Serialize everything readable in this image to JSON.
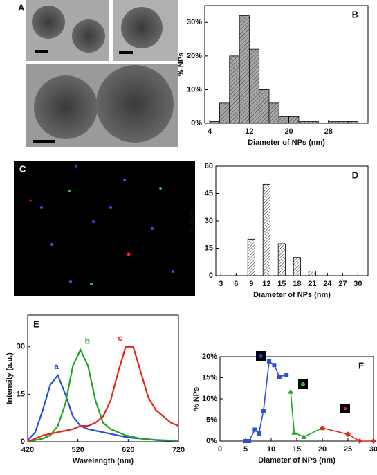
{
  "images": [
    {
      "panel": "A"
    },
    {
      "panel": "C"
    }
  ],
  "chart_data": [
    {
      "type": "histogram",
      "panel": "B",
      "xlabel": "Diameter of NPs (nm)",
      "ylabel": "% NPs",
      "bins": [
        4,
        6,
        8,
        10,
        12,
        14,
        16,
        18,
        20,
        22,
        24,
        26,
        28,
        30,
        32,
        34
      ],
      "values": [
        0.5,
        6,
        20,
        32,
        22,
        10,
        6,
        2,
        2,
        0.5,
        0.5,
        0,
        0.5,
        0.5,
        0.5
      ],
      "color": "#a8a8a8",
      "xlim": [
        3,
        36
      ],
      "xticks": [
        4,
        12,
        20,
        28
      ],
      "ylim": [
        0,
        35
      ],
      "yticks": [
        {
          "value": 0,
          "label": "0%"
        },
        {
          "value": 10,
          "label": "10%"
        },
        {
          "value": 20,
          "label": "20%"
        },
        {
          "value": 30,
          "label": "30%"
        }
      ]
    },
    {
      "type": "bar",
      "panel": "D",
      "xlabel": "Diameter of NPs (nm)",
      "ylabel": "% NPs",
      "x": [
        9,
        12,
        15,
        18,
        21
      ],
      "values": [
        20,
        50,
        17.5,
        10,
        2.5
      ],
      "color": "#ffffff",
      "xlim": [
        2,
        32
      ],
      "xticks": [
        3,
        6,
        9,
        12,
        15,
        18,
        21,
        24,
        27,
        30
      ],
      "ylim": [
        0,
        60
      ],
      "yticks": [
        0,
        15,
        30,
        45,
        60
      ]
    },
    {
      "type": "line",
      "panel": "E",
      "xlabel": "Wavelength (nm)",
      "ylabel": "Intensity (a.u.)",
      "x": [
        420,
        435,
        450,
        465,
        480,
        495,
        510,
        525,
        540,
        555,
        570,
        585,
        600,
        615,
        630,
        645,
        660,
        675,
        690,
        705,
        720
      ],
      "series": [
        {
          "name": "a",
          "color": "#2b4fd8",
          "values": [
            0.5,
            3,
            10,
            18,
            21,
            15,
            8,
            5,
            4,
            3.5,
            3,
            2.5,
            2,
            1.5,
            1.2,
            1,
            0.8,
            0.5,
            0.4,
            0.3,
            0.2
          ]
        },
        {
          "name": "b",
          "color": "#1ea51e",
          "values": [
            0,
            0.5,
            1,
            2,
            5,
            12,
            24,
            29,
            24,
            13,
            6,
            4,
            3,
            2,
            1.5,
            1,
            0.8,
            0.6,
            0.5,
            0.4,
            0.3
          ]
        },
        {
          "name": "c",
          "color": "#e8231c",
          "values": [
            0,
            1,
            2,
            2.5,
            3,
            3.5,
            4,
            5,
            5,
            6,
            8,
            13,
            22,
            30,
            30,
            22,
            14,
            10,
            8,
            6,
            5
          ]
        }
      ],
      "xlim": [
        420,
        720
      ],
      "xticks": [
        420,
        520,
        620,
        720
      ],
      "ylim": [
        0,
        40
      ],
      "yticks": [
        0,
        15,
        30
      ]
    },
    {
      "type": "scatter-line",
      "panel": "F",
      "xlabel": "Diameter of NPs (nm)",
      "ylabel": "% NPs",
      "series": [
        {
          "color": "#2b4fd8",
          "marker": "square",
          "x": [
            5,
            5.7,
            6.8,
            7.6,
            8.5,
            9.6,
            10.6,
            11.6,
            13
          ],
          "values": [
            0,
            0,
            2.7,
            1.8,
            7.2,
            18.9,
            18,
            15.2,
            15.7
          ]
        },
        {
          "color": "#1ea51e",
          "marker": "triangle",
          "x": [
            13.8,
            14.5,
            16.4,
            20
          ],
          "values": [
            11.7,
            2,
            1,
            3.1
          ]
        },
        {
          "color": "#e8231c",
          "marker": "diamond",
          "x": [
            20,
            25,
            27.3,
            30
          ],
          "values": [
            3.1,
            1.6,
            0,
            0
          ]
        }
      ],
      "xlim": [
        0,
        30
      ],
      "xticks": [
        0,
        5,
        10,
        15,
        20,
        25,
        30
      ],
      "ylim": [
        0,
        20
      ],
      "yticks": [
        {
          "value": 0,
          "label": "0%"
        },
        {
          "value": 5,
          "label": "5%"
        },
        {
          "value": 10,
          "label": "10%"
        },
        {
          "value": 15,
          "label": "15%"
        },
        {
          "value": 20,
          "label": "20%"
        }
      ]
    }
  ]
}
